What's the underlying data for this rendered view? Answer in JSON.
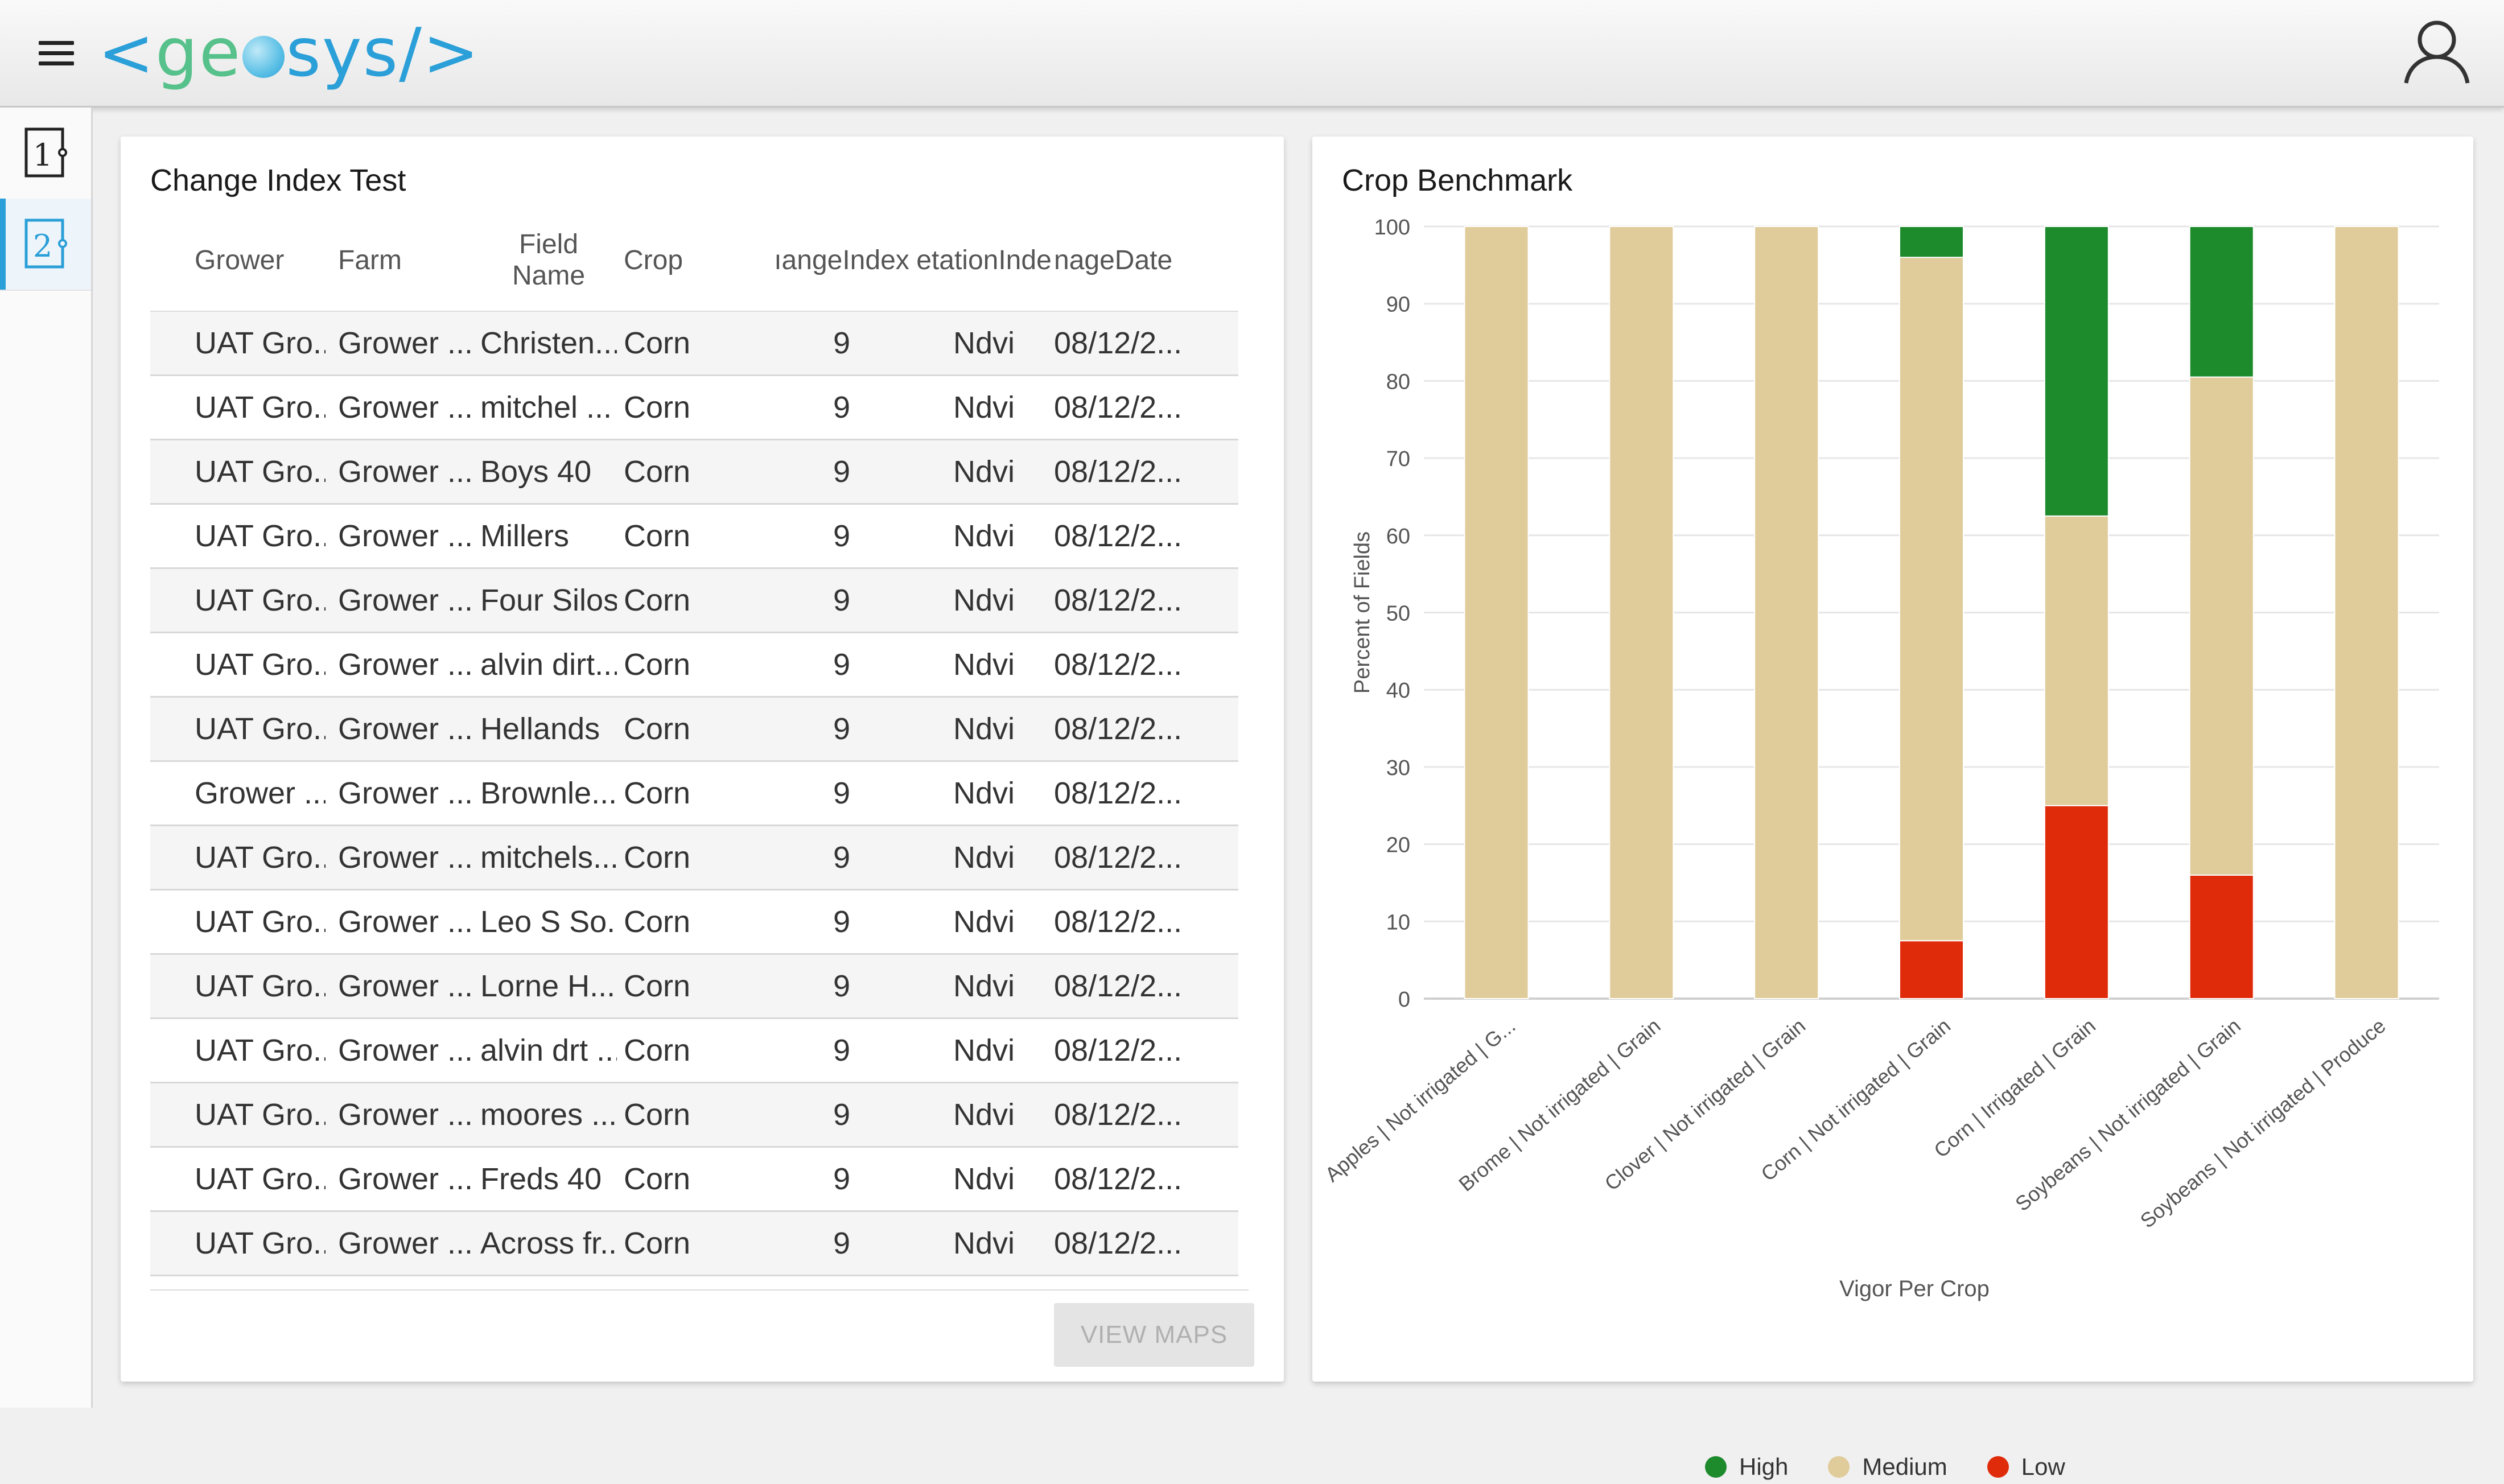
{
  "header": {
    "logo_left": "<",
    "logo_ge": "ge",
    "logo_sys": "sys",
    "logo_right": "/>",
    "logo_colors": {
      "bracket": "#2a9fd8",
      "ge": "#56c18a",
      "sys": "#2a9fd8"
    }
  },
  "rail": {
    "items": [
      {
        "label": "1",
        "active": false
      },
      {
        "label": "2",
        "active": true
      }
    ]
  },
  "change_index": {
    "title": "Change Index Test",
    "columns": [
      "Grower",
      "Farm",
      "Field\nName",
      "Crop",
      "ıangeIndex",
      "etationInde",
      "nageDate"
    ],
    "rows": [
      [
        "UAT Gro...",
        "Grower ...",
        "Christen...",
        "Corn",
        "9",
        "Ndvi",
        "08/12/2..."
      ],
      [
        "UAT Gro...",
        "Grower ...",
        "mitchel ...",
        "Corn",
        "9",
        "Ndvi",
        "08/12/2..."
      ],
      [
        "UAT Gro...",
        "Grower ...",
        "Boys 40",
        "Corn",
        "9",
        "Ndvi",
        "08/12/2..."
      ],
      [
        "UAT Gro...",
        "Grower ...",
        "Millers",
        "Corn",
        "9",
        "Ndvi",
        "08/12/2..."
      ],
      [
        "UAT Gro...",
        "Grower ...",
        "Four Silos",
        "Corn",
        "9",
        "Ndvi",
        "08/12/2..."
      ],
      [
        "UAT Gro...",
        "Grower ...",
        "alvin dirt...",
        "Corn",
        "9",
        "Ndvi",
        "08/12/2..."
      ],
      [
        "UAT Gro...",
        "Grower ...",
        "Hellands",
        "Corn",
        "9",
        "Ndvi",
        "08/12/2..."
      ],
      [
        "Grower ...",
        "Grower ...",
        "Brownle...",
        "Corn",
        "9",
        "Ndvi",
        "08/12/2..."
      ],
      [
        "UAT Gro...",
        "Grower ...",
        "mitchels...",
        "Corn",
        "9",
        "Ndvi",
        "08/12/2..."
      ],
      [
        "UAT Gro...",
        "Grower ...",
        "Leo S So...",
        "Corn",
        "9",
        "Ndvi",
        "08/12/2..."
      ],
      [
        "UAT Gro...",
        "Grower ...",
        "Lorne H...",
        "Corn",
        "9",
        "Ndvi",
        "08/12/2..."
      ],
      [
        "UAT Gro...",
        "Grower ...",
        "alvin drt ...",
        "Corn",
        "9",
        "Ndvi",
        "08/12/2..."
      ],
      [
        "UAT Gro...",
        "Grower ...",
        "moores ...",
        "Corn",
        "9",
        "Ndvi",
        "08/12/2..."
      ],
      [
        "UAT Gro...",
        "Grower ...",
        "Freds 40",
        "Corn",
        "9",
        "Ndvi",
        "08/12/2..."
      ],
      [
        "UAT Gro...",
        "Grower ...",
        "Across fr...",
        "Corn",
        "9",
        "Ndvi",
        "08/12/2..."
      ]
    ],
    "view_maps_label": "VIEW MAPS"
  },
  "benchmark": {
    "title": "Crop Benchmark"
  },
  "chart_data": {
    "type": "bar",
    "stacked": true,
    "title": "Crop Benchmark",
    "xlabel": "Vigor Per Crop",
    "ylabel": "Percent of Fields",
    "ylim": [
      0,
      100
    ],
    "yticks": [
      0,
      10,
      20,
      30,
      40,
      50,
      60,
      70,
      80,
      90,
      100
    ],
    "grid": true,
    "legend_position": "bottom",
    "categories": [
      "Apples | Not irrigated | G...",
      "Brome | Not irrigated | Grain",
      "Clover | Not irrigated | Grain",
      "Corn | Not irrigated | Grain",
      "Corn | Irrigated | Grain",
      "Soybeans | Not irrigated | Grain",
      "Soybeans | Not irrigated | Produce"
    ],
    "series": [
      {
        "name": "Low",
        "color": "#e02b0b",
        "values": [
          0,
          0,
          0,
          7.5,
          25,
          16,
          0
        ]
      },
      {
        "name": "Medium",
        "color": "#e0cb9a",
        "values": [
          100,
          100,
          100,
          88.5,
          37.5,
          64.5,
          100
        ]
      },
      {
        "name": "High",
        "color": "#1d8a2c",
        "values": [
          0,
          0,
          0,
          4,
          37.5,
          19.5,
          0
        ]
      }
    ],
    "legend_order": [
      "High",
      "Medium",
      "Low"
    ]
  }
}
